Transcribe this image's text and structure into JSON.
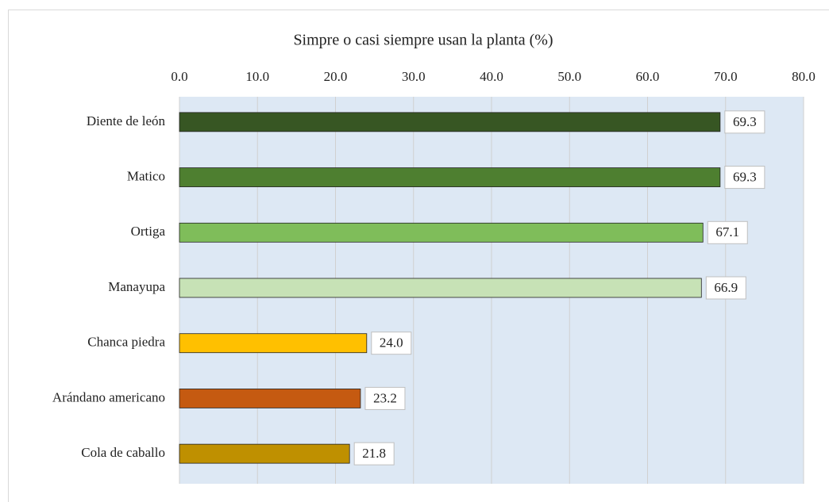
{
  "chart_data": {
    "type": "bar",
    "orientation": "horizontal",
    "title": "Simpre o casi siempre usan la planta (%)",
    "categories": [
      "Diente de león",
      "Matico",
      "Ortiga",
      "Manayupa",
      "Chanca piedra",
      "Arándano americano",
      "Cola de caballo"
    ],
    "values": [
      69.3,
      69.3,
      67.1,
      66.9,
      24.0,
      23.2,
      21.8
    ],
    "value_labels": [
      "69.3",
      "69.3",
      "67.1",
      "66.9",
      "24.0",
      "23.2",
      "21.8"
    ],
    "colors": [
      "#375623",
      "#4e7f30",
      "#7fbd5a",
      "#c7e2b6",
      "#ffc000",
      "#c55a11",
      "#bf9000"
    ],
    "xlim": [
      0,
      80
    ],
    "xticks": [
      {
        "value": 0,
        "label": "0.0"
      },
      {
        "value": 10,
        "label": "10.0"
      },
      {
        "value": 20,
        "label": "20.0"
      },
      {
        "value": 30,
        "label": "30.0"
      },
      {
        "value": 40,
        "label": "40.0"
      },
      {
        "value": 50,
        "label": "50.0"
      },
      {
        "value": 60,
        "label": "60.0"
      },
      {
        "value": 70,
        "label": "70.0"
      },
      {
        "value": 80,
        "label": "80.0"
      }
    ],
    "grid": true
  }
}
